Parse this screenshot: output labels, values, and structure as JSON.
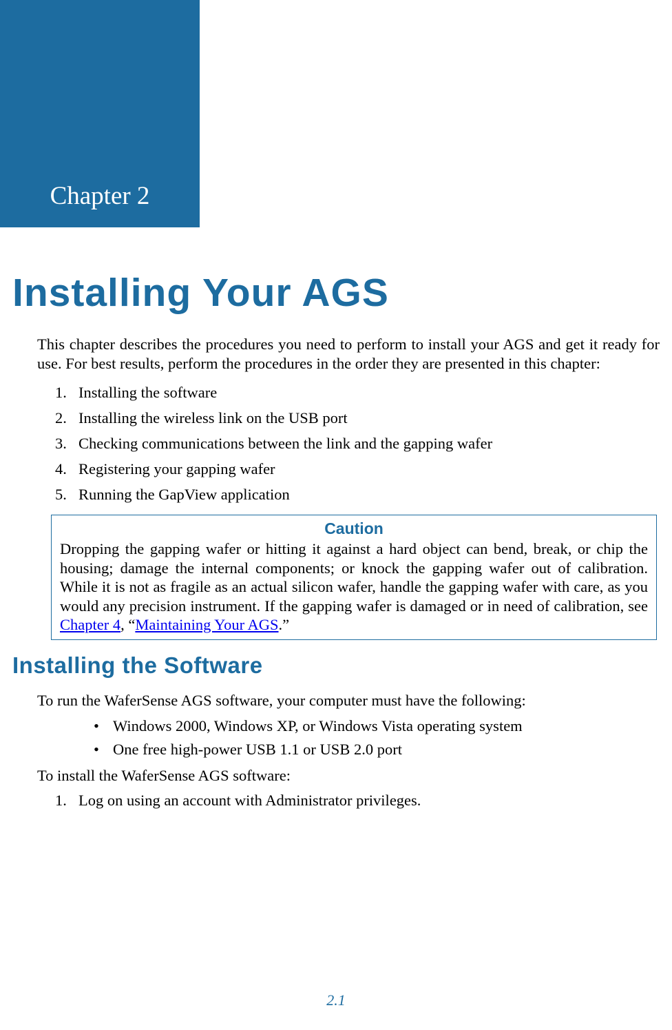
{
  "colors": {
    "brand_blue": "#1d6ca0",
    "link_blue": "#0000ee",
    "white": "#ffffff",
    "black": "#000000"
  },
  "typography": {
    "body_font": "Garamond serif",
    "heading_font": "Arial sans-serif",
    "main_title_size": 57,
    "section_title_size": 33,
    "body_size": 22.5,
    "chapter_tab_size": 37
  },
  "chapter_tab": "Chapter 2",
  "main_title": "Installing Your AGS",
  "intro": "This chapter describes the procedures you need to perform to install your AGS and get it ready for use. For best results, perform the procedures in the order they are presented in this chapter:",
  "steps": [
    "Installing the software",
    "Installing the wireless link on the USB port",
    "Checking communications between the link and the gapping wafer",
    "Registering your gapping wafer",
    "Running the GapView application"
  ],
  "caution": {
    "title": "Caution",
    "body_pre": "Dropping the gapping wafer or hitting it against a hard object can bend, break, or chip the housing; damage the internal components; or knock the gapping wafer out of calibration. While it is not as fragile as an actual silicon wafer, handle the gapping wafer with care, as you would any precision instrument. If the gapping wafer is damaged or in need of calibration, see ",
    "link1": "Chapter 4",
    "mid": ", “",
    "link2": "Maintaining Your AGS",
    "post": ".”"
  },
  "section_title": "Installing the Software",
  "req_intro": "To run the WaferSense AGS software, your computer must have the following:",
  "requirements": [
    "Windows 2000, Windows XP, or Windows Vista operating system",
    "One free high-power USB 1.1 or USB 2.0 port"
  ],
  "install_intro": "To install the WaferSense AGS software:",
  "install_steps": [
    "Log on using an account with Administrator privileges."
  ],
  "page_number": "2.1"
}
